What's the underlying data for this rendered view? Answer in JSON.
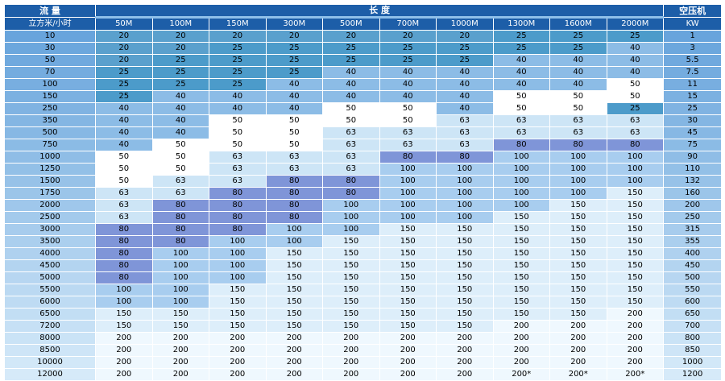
{
  "header": {
    "flow_title": "流 量",
    "flow_unit": "立方米/小时",
    "length_title": "长 度",
    "lengths": [
      "50M",
      "100M",
      "150M",
      "300M",
      "500M",
      "700M",
      "1000M",
      "1300M",
      "1600M",
      "2000M"
    ],
    "compressor_title": "空压机",
    "compressor_unit": "KW"
  },
  "table": {
    "rows": [
      {
        "flow": 10,
        "sizes": [
          20,
          20,
          20,
          20,
          20,
          20,
          20,
          25,
          25,
          25
        ],
        "kw": 1
      },
      {
        "flow": 30,
        "sizes": [
          20,
          20,
          25,
          25,
          25,
          25,
          25,
          25,
          25,
          40
        ],
        "kw": 3
      },
      {
        "flow": 50,
        "sizes": [
          20,
          25,
          25,
          25,
          25,
          25,
          25,
          40,
          40,
          40
        ],
        "kw": 5.5
      },
      {
        "flow": 70,
        "sizes": [
          25,
          25,
          25,
          25,
          40,
          40,
          40,
          40,
          40,
          40
        ],
        "kw": 7.5
      },
      {
        "flow": 100,
        "sizes": [
          25,
          25,
          25,
          40,
          40,
          40,
          40,
          40,
          40,
          50
        ],
        "kw": 11
      },
      {
        "flow": 150,
        "sizes": [
          25,
          40,
          40,
          40,
          40,
          40,
          40,
          50,
          50,
          50
        ],
        "kw": 15
      },
      {
        "flow": 250,
        "sizes": [
          40,
          40,
          40,
          40,
          50,
          50,
          40,
          50,
          50,
          25
        ],
        "kw": 25
      },
      {
        "flow": 350,
        "sizes": [
          40,
          40,
          50,
          50,
          50,
          50,
          63,
          63,
          63,
          63
        ],
        "kw": 30
      },
      {
        "flow": 500,
        "sizes": [
          40,
          40,
          50,
          50,
          63,
          63,
          63,
          63,
          63,
          63
        ],
        "kw": 45
      },
      {
        "flow": 750,
        "sizes": [
          40,
          50,
          50,
          50,
          63,
          63,
          63,
          80,
          80,
          80
        ],
        "kw": 75
      },
      {
        "flow": 1000,
        "sizes": [
          50,
          50,
          63,
          63,
          63,
          80,
          80,
          100,
          100,
          100
        ],
        "kw": 90
      },
      {
        "flow": 1250,
        "sizes": [
          50,
          50,
          63,
          63,
          63,
          100,
          100,
          100,
          100,
          100
        ],
        "kw": 110
      },
      {
        "flow": 1500,
        "sizes": [
          50,
          63,
          63,
          80,
          80,
          100,
          100,
          100,
          100,
          100
        ],
        "kw": 132
      },
      {
        "flow": 1750,
        "sizes": [
          63,
          63,
          80,
          80,
          80,
          100,
          100,
          100,
          100,
          150
        ],
        "kw": 160
      },
      {
        "flow": 2000,
        "sizes": [
          63,
          80,
          80,
          80,
          100,
          100,
          100,
          100,
          150,
          150
        ],
        "kw": 200
      },
      {
        "flow": 2500,
        "sizes": [
          63,
          80,
          80,
          80,
          100,
          100,
          100,
          150,
          150,
          150
        ],
        "kw": 250
      },
      {
        "flow": 3000,
        "sizes": [
          80,
          80,
          80,
          100,
          100,
          150,
          150,
          150,
          150,
          150
        ],
        "kw": 315
      },
      {
        "flow": 3500,
        "sizes": [
          80,
          80,
          100,
          100,
          150,
          150,
          150,
          150,
          150,
          150
        ],
        "kw": 355
      },
      {
        "flow": 4000,
        "sizes": [
          80,
          100,
          100,
          150,
          150,
          150,
          150,
          150,
          150,
          150
        ],
        "kw": 400
      },
      {
        "flow": 4500,
        "sizes": [
          80,
          100,
          100,
          150,
          150,
          150,
          150,
          150,
          150,
          150
        ],
        "kw": 450
      },
      {
        "flow": 5000,
        "sizes": [
          80,
          100,
          100,
          150,
          150,
          150,
          150,
          150,
          150,
          150
        ],
        "kw": 500
      },
      {
        "flow": 5500,
        "sizes": [
          100,
          100,
          150,
          150,
          150,
          150,
          150,
          150,
          150,
          150
        ],
        "kw": 550
      },
      {
        "flow": 6000,
        "sizes": [
          100,
          100,
          150,
          150,
          150,
          150,
          150,
          150,
          150,
          150
        ],
        "kw": 600
      },
      {
        "flow": 6500,
        "sizes": [
          150,
          150,
          150,
          150,
          150,
          150,
          150,
          150,
          150,
          200
        ],
        "kw": 650
      },
      {
        "flow": 7200,
        "sizes": [
          150,
          150,
          150,
          150,
          150,
          150,
          150,
          200,
          200,
          200
        ],
        "kw": 700
      },
      {
        "flow": 8000,
        "sizes": [
          200,
          200,
          200,
          200,
          200,
          200,
          200,
          200,
          200,
          200
        ],
        "kw": 800
      },
      {
        "flow": 8500,
        "sizes": [
          200,
          200,
          200,
          200,
          200,
          200,
          200,
          200,
          200,
          200
        ],
        "kw": 850
      },
      {
        "flow": 10000,
        "sizes": [
          200,
          200,
          200,
          200,
          200,
          200,
          200,
          200,
          200,
          200
        ],
        "kw": 1000
      },
      {
        "flow": 12000,
        "sizes": [
          200,
          200,
          200,
          200,
          200,
          200,
          200,
          "200*",
          "200*",
          "200*"
        ],
        "kw": 1200
      }
    ]
  },
  "cell_colors": {
    "20": "#5aa0cd",
    "25": "#4c9bca",
    "40": "#8cbce6",
    "50": "#7badе2",
    "63": "#cde5f6",
    "80": "#7f95d8",
    "100": "#a8cdef",
    "150": "#ddeefa",
    "200": "#eff8fe",
    "200*": "#eff8fe"
  }
}
